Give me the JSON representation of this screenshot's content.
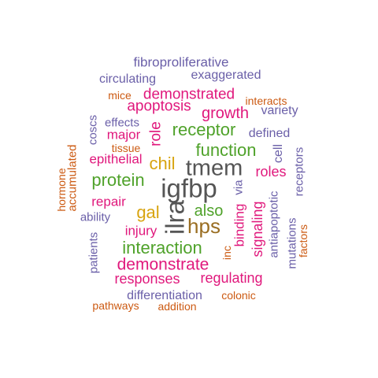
{
  "colors": {
    "purple": "#6a5fa8",
    "pink": "#e0187c",
    "green": "#4fa22a",
    "orange": "#cc5a12",
    "gold": "#d8a410",
    "gray": "#555555",
    "brown": "#9a6e22"
  },
  "words": [
    {
      "text": "fibroproliferative",
      "color": "purple"
    },
    {
      "text": "circulating",
      "color": "purple"
    },
    {
      "text": "exaggerated",
      "color": "purple"
    },
    {
      "text": "mice",
      "color": "orange"
    },
    {
      "text": "demonstrated",
      "color": "pink"
    },
    {
      "text": "interacts",
      "color": "orange"
    },
    {
      "text": "apoptosis",
      "color": "pink"
    },
    {
      "text": "growth",
      "color": "pink"
    },
    {
      "text": "variety",
      "color": "purple"
    },
    {
      "text": "effects",
      "color": "purple"
    },
    {
      "text": "coscs",
      "color": "purple"
    },
    {
      "text": "role",
      "color": "pink"
    },
    {
      "text": "receptor",
      "color": "green"
    },
    {
      "text": "defined",
      "color": "purple"
    },
    {
      "text": "major",
      "color": "pink"
    },
    {
      "text": "tissue",
      "color": "orange"
    },
    {
      "text": "function",
      "color": "green"
    },
    {
      "text": "cell",
      "color": "purple"
    },
    {
      "text": "receptors",
      "color": "purple"
    },
    {
      "text": "accumulated",
      "color": "orange"
    },
    {
      "text": "epithelial",
      "color": "pink"
    },
    {
      "text": "chil",
      "color": "gold"
    },
    {
      "text": "tmem",
      "color": "gray"
    },
    {
      "text": "roles",
      "color": "pink"
    },
    {
      "text": "hormone",
      "color": "orange"
    },
    {
      "text": "protein",
      "color": "green"
    },
    {
      "text": "igfbp",
      "color": "gray"
    },
    {
      "text": "via",
      "color": "purple"
    },
    {
      "text": "antiapoptotic",
      "color": "purple"
    },
    {
      "text": "repair",
      "color": "pink"
    },
    {
      "text": "gal",
      "color": "gold"
    },
    {
      "text": "ilra",
      "color": "gray"
    },
    {
      "text": "also",
      "color": "green"
    },
    {
      "text": "ability",
      "color": "purple"
    },
    {
      "text": "binding",
      "color": "pink"
    },
    {
      "text": "hps",
      "color": "brown"
    },
    {
      "text": "signaling",
      "color": "pink"
    },
    {
      "text": "mutations",
      "color": "purple"
    },
    {
      "text": "factors",
      "color": "orange"
    },
    {
      "text": "injury",
      "color": "pink"
    },
    {
      "text": "patients",
      "color": "purple"
    },
    {
      "text": "interaction",
      "color": "green"
    },
    {
      "text": "inc",
      "color": "orange"
    },
    {
      "text": "demonstrate",
      "color": "pink"
    },
    {
      "text": "responses",
      "color": "pink"
    },
    {
      "text": "regulating",
      "color": "pink"
    },
    {
      "text": "differentiation",
      "color": "purple"
    },
    {
      "text": "colonic",
      "color": "orange"
    },
    {
      "text": "pathways",
      "color": "orange"
    },
    {
      "text": "addition",
      "color": "orange"
    }
  ]
}
